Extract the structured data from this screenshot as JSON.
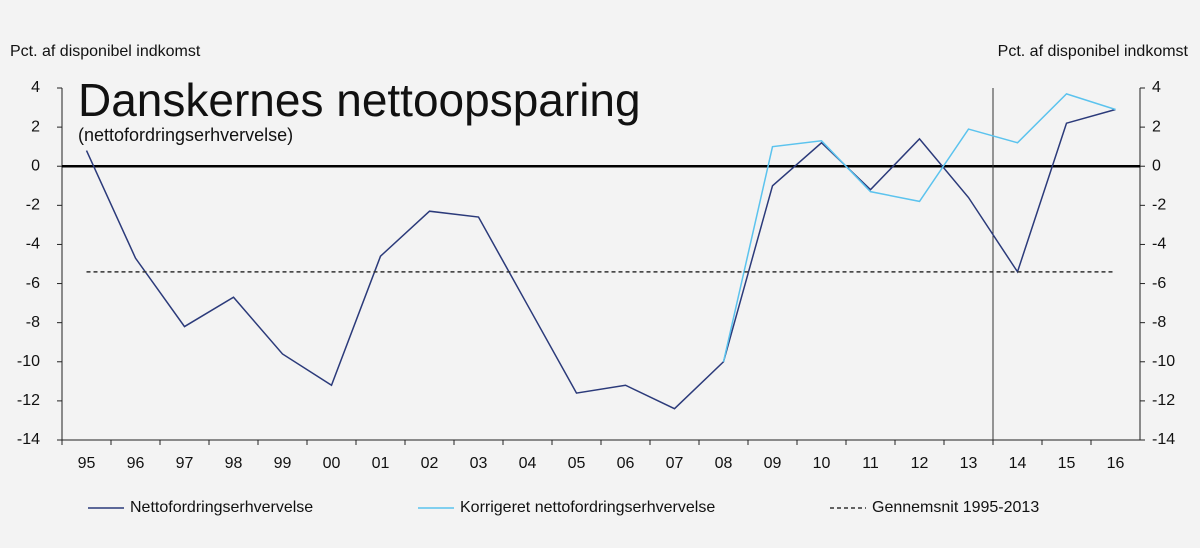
{
  "chart_data": {
    "type": "line",
    "title": "Danskernes nettoopsparing",
    "subtitle": "(nettofordringserhvervelse)",
    "y_label": "Pct. af disponibel indkomst",
    "y2_label": "Pct. af disponibel indkomst",
    "categories": [
      "95",
      "96",
      "97",
      "98",
      "99",
      "00",
      "01",
      "02",
      "03",
      "04",
      "05",
      "06",
      "07",
      "08",
      "09",
      "10",
      "11",
      "12",
      "13",
      "14",
      "15",
      "16"
    ],
    "series": [
      {
        "name": "Nettofordringserhvervelse",
        "color": "#2b3a7a",
        "dashed": false,
        "values": [
          0.8,
          -4.7,
          -8.2,
          -6.7,
          -9.6,
          -11.2,
          -4.6,
          -2.3,
          -2.6,
          -7.1,
          -11.6,
          -11.2,
          -12.4,
          -10,
          -1,
          1.2,
          -1.2,
          1.4,
          -1.6,
          -5.4,
          2.2,
          2.9
        ]
      },
      {
        "name": "Korrigeret nettofordringserhvervelse",
        "color": "#5bc3ee",
        "dashed": false,
        "values": [
          null,
          null,
          null,
          null,
          null,
          null,
          null,
          null,
          null,
          null,
          null,
          null,
          null,
          -10,
          1.0,
          1.3,
          -1.3,
          -1.8,
          1.9,
          1.2,
          3.7,
          2.9
        ]
      },
      {
        "name": "Gennemsnit 1995-2013",
        "color": "#333333",
        "dashed": true,
        "values": [
          -5.4,
          -5.4,
          -5.4,
          -5.4,
          -5.4,
          -5.4,
          -5.4,
          -5.4,
          -5.4,
          -5.4,
          -5.4,
          -5.4,
          -5.4,
          -5.4,
          -5.4,
          -5.4,
          -5.4,
          -5.4,
          -5.4,
          -5.4,
          -5.4,
          -5.4
        ]
      }
    ],
    "ylim": [
      -14,
      4
    ],
    "yticks": [
      4,
      2,
      0,
      -2,
      -4,
      -6,
      -8,
      -10,
      -12,
      -14
    ],
    "y2lim": [
      -14,
      4
    ],
    "y2ticks": [
      4,
      2,
      0,
      -2,
      -4,
      -6,
      -8,
      -10,
      -12,
      -14
    ],
    "legend": "bottom",
    "grid": false
  }
}
